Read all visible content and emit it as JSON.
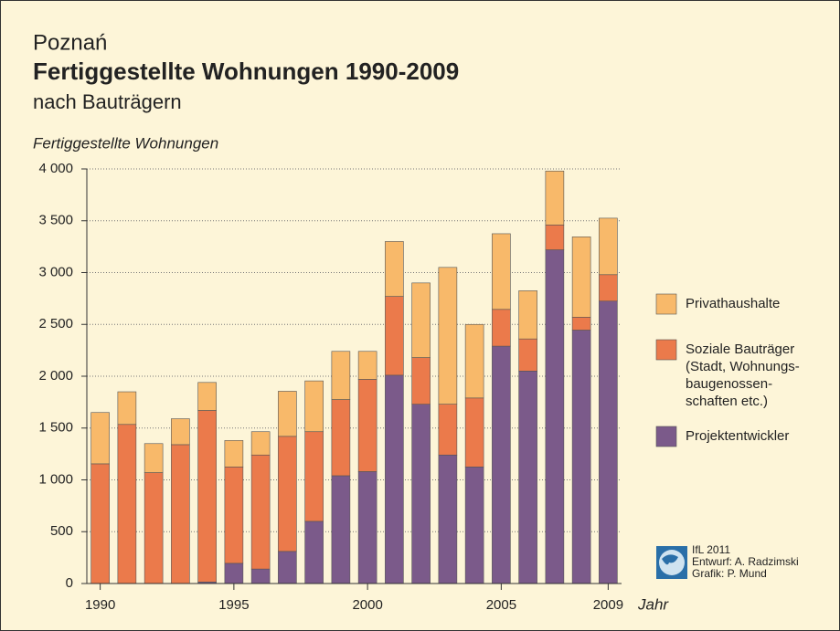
{
  "chart_data": {
    "type": "bar",
    "supertitle": "Poznań",
    "title": "Fertiggestellte Wohnungen 1990-2009",
    "subtitle": "nach Bauträgern",
    "ylabel": "Fertiggestellte Wohnungen",
    "xlabel": "Jahr",
    "stacked": true,
    "grid": true,
    "x": [
      1990,
      1991,
      1992,
      1993,
      1994,
      1995,
      1996,
      1997,
      1998,
      1999,
      2000,
      2001,
      2002,
      2003,
      2004,
      2005,
      2006,
      2007,
      2008,
      2009
    ],
    "xlim": [
      1989.5,
      2009.5
    ],
    "xticks": [
      1990,
      1995,
      2000,
      2005,
      2009
    ],
    "ylim": [
      0,
      4000
    ],
    "yticks": [
      0,
      500,
      {
        "value": 1000,
        "label": "1 000"
      },
      {
        "value": 1500,
        "label": "1 500"
      },
      {
        "value": 2000,
        "label": "2 000"
      },
      {
        "value": 2500,
        "label": "2 500"
      },
      {
        "value": 3000,
        "label": "3 000"
      },
      {
        "value": 3500,
        "label": "3 500"
      },
      {
        "value": 4000,
        "label": "4 000"
      }
    ],
    "series": [
      {
        "name": "Projektentwickler",
        "color": "#7b5a8a",
        "values": [
          0,
          0,
          0,
          0,
          15,
          195,
          140,
          310,
          600,
          1040,
          1080,
          2010,
          1730,
          1240,
          1125,
          2290,
          2050,
          3220,
          2445,
          2725
        ]
      },
      {
        "name": [
          "Soziale Bauträger",
          "(Stadt, Wohnungs-",
          "baugenossen-",
          "schaften etc.)"
        ],
        "color": "#eb7a4b",
        "values": [
          1155,
          1535,
          1070,
          1340,
          1655,
          930,
          1100,
          1110,
          865,
          735,
          890,
          760,
          450,
          490,
          665,
          355,
          310,
          240,
          125,
          255
        ]
      },
      {
        "name": "Privathaushalte",
        "color": "#f8b96a",
        "values": [
          495,
          315,
          280,
          250,
          270,
          255,
          225,
          435,
          490,
          465,
          270,
          530,
          720,
          1320,
          710,
          730,
          465,
          520,
          775,
          545
        ]
      }
    ],
    "credits": [
      "IfL 2011",
      "Entwurf: A. Radzimski",
      "Grafik: P. Mund"
    ]
  }
}
